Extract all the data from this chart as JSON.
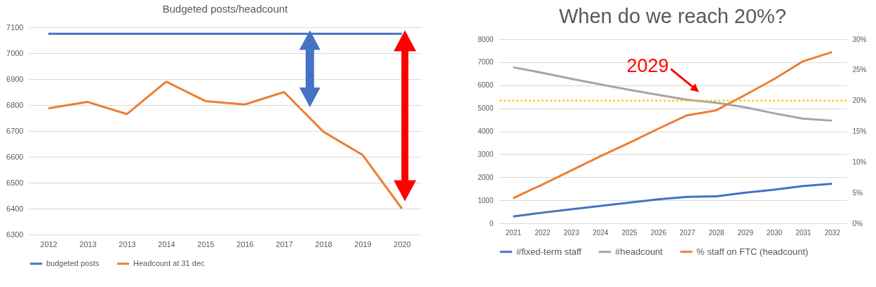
{
  "chart_data": [
    {
      "type": "line",
      "title": "Budgeted posts/headcount",
      "categories": [
        "2012",
        "2013",
        "2013",
        "2014",
        "2015",
        "2016",
        "2017",
        "2018",
        "2019",
        "2020"
      ],
      "series": [
        {
          "name": "budgeted posts",
          "color": "#4472c4",
          "values": [
            7075,
            7075,
            7075,
            7075,
            7075,
            7075,
            7075,
            7075,
            7075,
            7075
          ]
        },
        {
          "name": "Headcount at 31 dec",
          "color": "#ed7d31",
          "values": [
            6787,
            6812,
            6765,
            6890,
            6815,
            6802,
            6850,
            6697,
            6607,
            6400
          ]
        }
      ],
      "ylim": [
        6300,
        7100
      ],
      "yticks": [
        6300,
        6400,
        6500,
        6600,
        6700,
        6800,
        6900,
        7000,
        7100
      ],
      "grid": "y",
      "legend": "bottom"
    },
    {
      "type": "line",
      "title": "When do we reach 20%?",
      "categories": [
        "2021",
        "2022",
        "2023",
        "2024",
        "2025",
        "2026",
        "2027",
        "2028",
        "2029",
        "2030",
        "2031",
        "2032"
      ],
      "series": [
        {
          "name": "#fixed-term staff",
          "color": "#4472c4",
          "values": [
            300,
            460,
            610,
            750,
            900,
            1040,
            1150,
            1170,
            1330,
            1460,
            1620,
            1720
          ]
        },
        {
          "name": "#headcount",
          "color": "#a5a5a5",
          "values": [
            6780,
            6540,
            6280,
            6040,
            5800,
            5580,
            5370,
            5240,
            5040,
            4780,
            4550,
            4460
          ]
        },
        {
          "name": "% staff on FTC (headcount)",
          "color": "#ed7d31",
          "axis": "y2",
          "values": [
            4.1,
            6.3,
            8.6,
            10.9,
            13.1,
            15.4,
            17.6,
            18.4,
            20.9,
            23.5,
            26.4,
            27.9
          ]
        }
      ],
      "ylim": [
        0,
        8000
      ],
      "yticks": [
        0,
        1000,
        2000,
        3000,
        4000,
        5000,
        6000,
        7000,
        8000
      ],
      "y2lim": [
        0,
        30
      ],
      "y2ticks": [
        {
          "value": 0,
          "label": "0%"
        },
        {
          "value": 5,
          "label": "5%"
        },
        {
          "value": 10,
          "label": "10%"
        },
        {
          "value": 15,
          "label": "15%"
        },
        {
          "value": 20,
          "label": "20%"
        },
        {
          "value": 25,
          "label": "25%"
        },
        {
          "value": 30,
          "label": "30%"
        }
      ],
      "ref_lines": [
        {
          "axis": "y2",
          "value": 20,
          "color": "#ffc000",
          "line_style": "dotted"
        }
      ],
      "annotations": [
        "2029"
      ],
      "grid": "y",
      "legend": "bottom"
    }
  ]
}
